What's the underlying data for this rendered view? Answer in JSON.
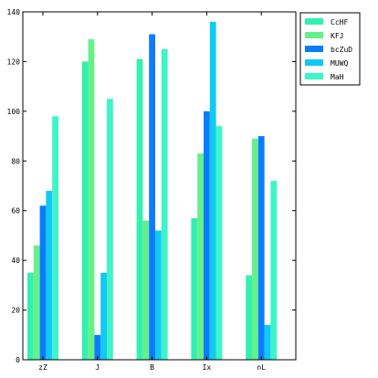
{
  "chart_data": {
    "type": "bar",
    "title": "",
    "xlabel": "",
    "ylabel": "",
    "categories": [
      "zZ",
      "J",
      "B",
      "Ix",
      "nL"
    ],
    "ylim": [
      0,
      140
    ],
    "yticks": [
      0,
      20,
      40,
      60,
      80,
      100,
      120,
      140
    ],
    "grid": false,
    "legend_position": "outside-right",
    "series": [
      {
        "name": "CcHF",
        "color": "#33f0b0",
        "values": [
          35,
          120,
          121,
          57,
          34
        ]
      },
      {
        "name": "KFJ",
        "color": "#66f08a",
        "values": [
          46,
          129,
          56,
          83,
          89
        ]
      },
      {
        "name": "bcZuD",
        "color": "#0a7cff",
        "values": [
          62,
          10,
          131,
          100,
          90
        ]
      },
      {
        "name": "MUWQ",
        "color": "#12c8f5",
        "values": [
          68,
          35,
          52,
          136,
          14
        ]
      },
      {
        "name": "MaH",
        "color": "#3df5c8",
        "values": [
          98,
          105,
          125,
          94,
          72
        ]
      }
    ]
  }
}
